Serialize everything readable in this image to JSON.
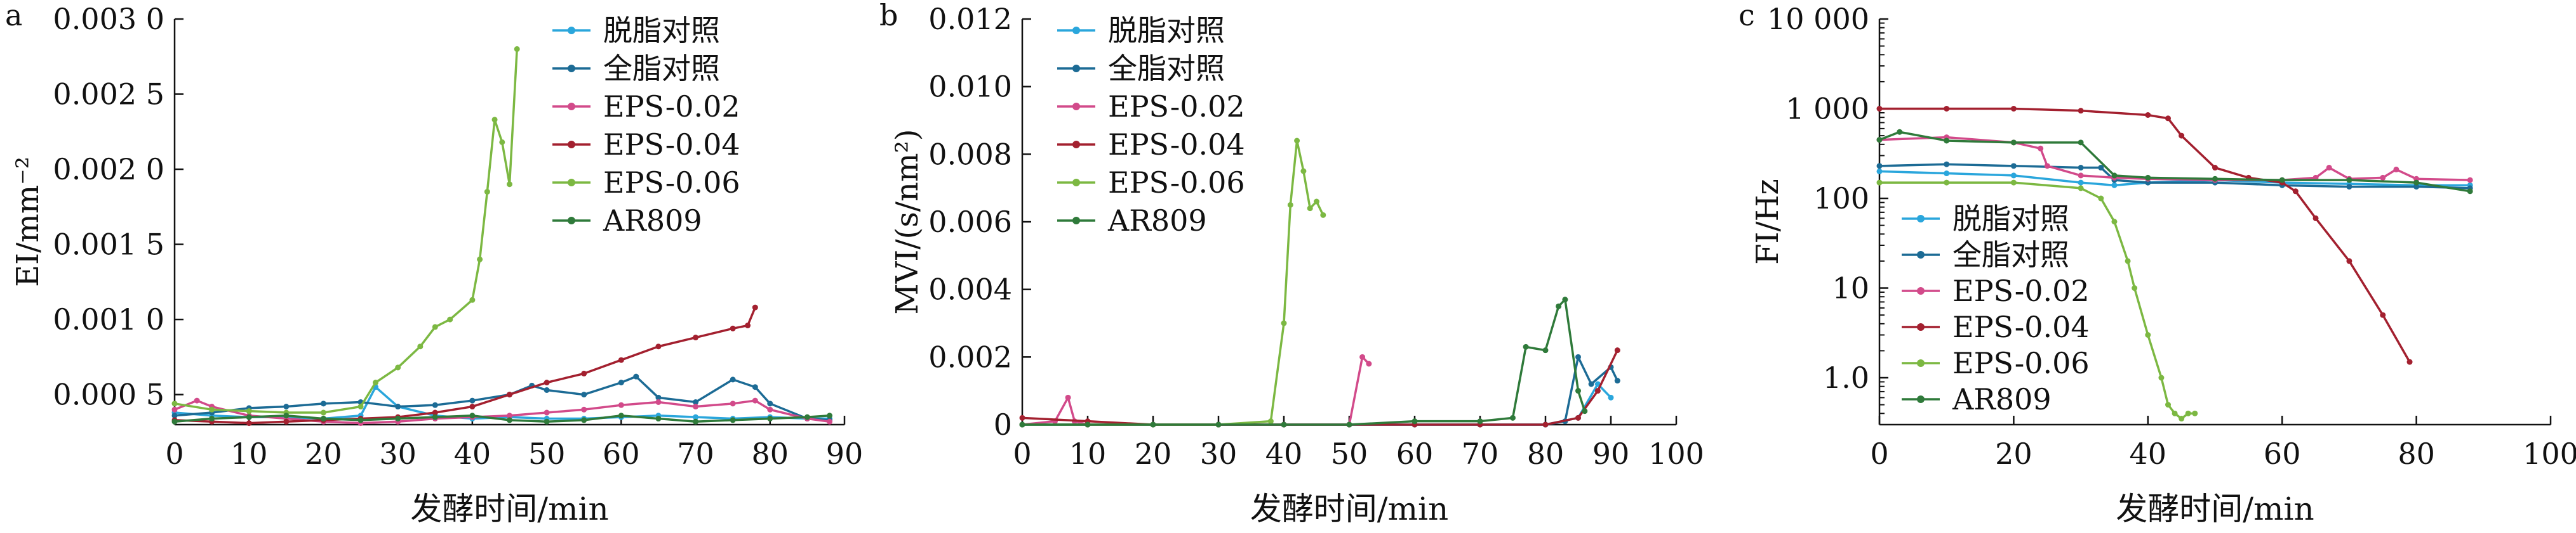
{
  "colors": {
    "skim": "#2aa6dc",
    "whole": "#1c6b95",
    "eps002": "#d24a8a",
    "eps004": "#a3202f",
    "eps006": "#7cb842",
    "ar809": "#2f7a3a"
  },
  "chart_data": [
    {
      "type": "line",
      "panel_label": "a",
      "xlabel": "发酵时间/min",
      "ylabel": "EI/mm⁻²",
      "xlim": [
        0,
        90
      ],
      "ylim": [
        0.0003,
        0.003
      ],
      "xticks": [
        0,
        10,
        20,
        30,
        40,
        50,
        60,
        70,
        80,
        90
      ],
      "xtick_labels": [
        "0",
        "10",
        "20",
        "30",
        "40",
        "50",
        "60",
        "70",
        "80",
        "90"
      ],
      "yticks": [
        0.0005,
        0.001,
        0.0015,
        0.002,
        0.0025,
        0.003
      ],
      "ytick_labels": [
        "0.000 5",
        "0.001 0",
        "0.001 5",
        "0.002 0",
        "0.002 5",
        "0.003 0"
      ],
      "legend_position": "top-center",
      "series": [
        {
          "name": "脱脂对照",
          "color_key": "skim",
          "x": [
            0,
            5,
            10,
            15,
            20,
            25,
            27,
            30,
            35,
            40,
            45,
            50,
            55,
            60,
            65,
            70,
            75,
            80,
            85,
            88
          ],
          "y": [
            0.00038,
            0.00036,
            0.00035,
            0.00035,
            0.00034,
            0.00036,
            0.00055,
            0.00042,
            0.00036,
            0.00034,
            0.00035,
            0.00034,
            0.00034,
            0.00035,
            0.00036,
            0.00035,
            0.00034,
            0.00035,
            0.00034,
            0.00034
          ]
        },
        {
          "name": "全脂对照",
          "color_key": "whole",
          "x": [
            0,
            5,
            10,
            15,
            20,
            25,
            30,
            35,
            40,
            45,
            48,
            50,
            55,
            60,
            62,
            65,
            70,
            75,
            78,
            80,
            85,
            88
          ],
          "y": [
            0.00036,
            0.00038,
            0.00041,
            0.00042,
            0.00044,
            0.00045,
            0.00042,
            0.00043,
            0.00046,
            0.0005,
            0.00056,
            0.00053,
            0.0005,
            0.00058,
            0.00062,
            0.00048,
            0.00045,
            0.0006,
            0.00055,
            0.00044,
            0.00034,
            0.00033
          ]
        },
        {
          "name": "EPS-0.02",
          "color_key": "eps002",
          "x": [
            0,
            3,
            5,
            10,
            15,
            20,
            25,
            30,
            35,
            40,
            45,
            50,
            55,
            60,
            65,
            70,
            75,
            78,
            80,
            85,
            88
          ],
          "y": [
            0.0004,
            0.00046,
            0.00042,
            0.00036,
            0.00034,
            0.00032,
            0.00031,
            0.00032,
            0.00034,
            0.00035,
            0.00036,
            0.00038,
            0.0004,
            0.00043,
            0.00045,
            0.00042,
            0.00044,
            0.00046,
            0.0004,
            0.00034,
            0.00032
          ]
        },
        {
          "name": "EPS-0.04",
          "color_key": "eps004",
          "x": [
            0,
            5,
            10,
            15,
            20,
            25,
            30,
            35,
            40,
            45,
            50,
            55,
            60,
            65,
            70,
            75,
            77,
            78
          ],
          "y": [
            0.00033,
            0.00032,
            0.00031,
            0.00032,
            0.00033,
            0.00034,
            0.00035,
            0.00038,
            0.00042,
            0.0005,
            0.00058,
            0.00064,
            0.00073,
            0.00082,
            0.00088,
            0.00094,
            0.00096,
            0.00108
          ]
        },
        {
          "name": "EPS-0.06",
          "color_key": "eps006",
          "x": [
            0,
            5,
            10,
            15,
            20,
            25,
            27,
            30,
            33,
            35,
            37,
            40,
            41,
            42,
            43,
            44,
            45,
            46
          ],
          "y": [
            0.00044,
            0.0004,
            0.00039,
            0.00038,
            0.00038,
            0.00042,
            0.00058,
            0.00068,
            0.00082,
            0.00095,
            0.001,
            0.00113,
            0.0014,
            0.00185,
            0.00233,
            0.00218,
            0.0019,
            0.0028
          ]
        },
        {
          "name": "AR809",
          "color_key": "ar809",
          "x": [
            0,
            5,
            10,
            15,
            20,
            25,
            30,
            35,
            40,
            45,
            50,
            55,
            60,
            65,
            70,
            75,
            80,
            85,
            88
          ],
          "y": [
            0.00032,
            0.00034,
            0.00035,
            0.00036,
            0.00034,
            0.00033,
            0.00034,
            0.00035,
            0.00036,
            0.00033,
            0.00032,
            0.00033,
            0.00036,
            0.00034,
            0.00032,
            0.00033,
            0.00034,
            0.00035,
            0.00036
          ]
        }
      ]
    },
    {
      "type": "line",
      "panel_label": "b",
      "xlabel": "发酵时间/min",
      "ylabel": "MVI/(s/nm²)",
      "xlim": [
        0,
        100
      ],
      "ylim": [
        0,
        0.012
      ],
      "xticks": [
        0,
        10,
        20,
        30,
        40,
        50,
        60,
        70,
        80,
        90,
        100
      ],
      "xtick_labels": [
        "0",
        "10",
        "20",
        "30",
        "40",
        "50",
        "60",
        "70",
        "80",
        "90",
        "100"
      ],
      "yticks": [
        0,
        0.002,
        0.004,
        0.006,
        0.008,
        0.01,
        0.012
      ],
      "ytick_labels": [
        "0",
        "0.002",
        "0.004",
        "0.006",
        "0.008",
        "0.010",
        "0.012"
      ],
      "legend_position": "top-center",
      "series": [
        {
          "name": "脱脂对照",
          "color_key": "skim",
          "x": [
            0,
            10,
            20,
            30,
            40,
            50,
            60,
            70,
            80,
            85,
            88,
            90
          ],
          "y": [
            0,
            0,
            0,
            0,
            0,
            0,
            0,
            0,
            0,
            0.0002,
            0.0012,
            0.0008
          ]
        },
        {
          "name": "全脂对照",
          "color_key": "whole",
          "x": [
            0,
            10,
            20,
            30,
            40,
            50,
            60,
            70,
            80,
            83,
            85,
            87,
            90,
            91
          ],
          "y": [
            0,
            0,
            0,
            0,
            0,
            0,
            0,
            0,
            0,
            0.0001,
            0.002,
            0.0012,
            0.0017,
            0.0013
          ]
        },
        {
          "name": "EPS-0.02",
          "color_key": "eps002",
          "x": [
            0,
            5,
            7,
            8,
            10,
            20,
            30,
            40,
            50,
            52,
            53
          ],
          "y": [
            0,
            0.0001,
            0.0008,
            0.0001,
            0,
            0,
            0,
            0,
            0,
            0.002,
            0.0018
          ]
        },
        {
          "name": "EPS-0.04",
          "color_key": "eps004",
          "x": [
            0,
            10,
            20,
            30,
            40,
            50,
            60,
            70,
            80,
            85,
            88,
            91
          ],
          "y": [
            0.0002,
            0.0001,
            0,
            0,
            0,
            0,
            0,
            0,
            0,
            0.0002,
            0.001,
            0.0022
          ]
        },
        {
          "name": "EPS-0.06",
          "color_key": "eps006",
          "x": [
            0,
            10,
            20,
            30,
            38,
            40,
            41,
            42,
            43,
            44,
            45,
            46
          ],
          "y": [
            0,
            0,
            0,
            0,
            0.0001,
            0.003,
            0.0065,
            0.0084,
            0.0075,
            0.0064,
            0.0066,
            0.0062
          ]
        },
        {
          "name": "AR809",
          "color_key": "ar809",
          "x": [
            0,
            10,
            20,
            30,
            40,
            50,
            60,
            70,
            75,
            77,
            80,
            82,
            83,
            85,
            86
          ],
          "y": [
            0,
            0,
            0,
            0,
            0,
            0,
            0.0001,
            0.0001,
            0.0002,
            0.0023,
            0.0022,
            0.0035,
            0.0037,
            0.001,
            0.0004
          ]
        }
      ]
    },
    {
      "type": "line",
      "panel_label": "c",
      "xlabel": "发酵时间/min",
      "ylabel": "FI/Hz",
      "yscale": "log",
      "xlim": [
        0,
        100
      ],
      "ylim": [
        0.3,
        10000
      ],
      "xticks": [
        0,
        20,
        40,
        60,
        80,
        100
      ],
      "xtick_labels": [
        "0",
        "20",
        "40",
        "60",
        "80",
        "100"
      ],
      "yticks": [
        1,
        10,
        100,
        1000,
        10000
      ],
      "ytick_labels": [
        "1.0",
        "10",
        "100",
        "1 000",
        "10 000"
      ],
      "legend_position": "center-left",
      "series": [
        {
          "name": "脱脂对照",
          "color_key": "skim",
          "x": [
            0,
            10,
            20,
            30,
            35,
            40,
            50,
            60,
            70,
            80,
            88
          ],
          "y": [
            200,
            190,
            180,
            150,
            140,
            150,
            160,
            150,
            145,
            140,
            140
          ]
        },
        {
          "name": "全脂对照",
          "color_key": "whole",
          "x": [
            0,
            10,
            20,
            30,
            33,
            35,
            40,
            50,
            60,
            70,
            80,
            88
          ],
          "y": [
            230,
            240,
            230,
            220,
            220,
            160,
            150,
            150,
            140,
            135,
            135,
            130
          ]
        },
        {
          "name": "EPS-0.02",
          "color_key": "eps002",
          "x": [
            0,
            10,
            20,
            24,
            25,
            30,
            35,
            40,
            50,
            60,
            65,
            67,
            70,
            75,
            77,
            80,
            88
          ],
          "y": [
            450,
            480,
            420,
            360,
            230,
            180,
            170,
            165,
            160,
            160,
            170,
            220,
            165,
            170,
            210,
            165,
            160
          ]
        },
        {
          "name": "EPS-0.04",
          "color_key": "eps004",
          "x": [
            0,
            10,
            20,
            30,
            40,
            43,
            45,
            50,
            55,
            60,
            62,
            65,
            70,
            75,
            79
          ],
          "y": [
            1000,
            1000,
            1000,
            950,
            850,
            780,
            500,
            220,
            170,
            150,
            120,
            60,
            20,
            5,
            1.5
          ]
        },
        {
          "name": "EPS-0.06",
          "color_key": "eps006",
          "x": [
            0,
            10,
            20,
            30,
            33,
            35,
            37,
            38,
            40,
            42,
            43,
            44,
            45,
            46,
            47
          ],
          "y": [
            150,
            150,
            150,
            130,
            100,
            55,
            20,
            10,
            3,
            1,
            0.5,
            0.4,
            0.35,
            0.4,
            0.4
          ]
        },
        {
          "name": "AR809",
          "color_key": "ar809",
          "x": [
            0,
            3,
            10,
            20,
            30,
            35,
            40,
            50,
            60,
            70,
            80,
            88
          ],
          "y": [
            450,
            550,
            440,
            420,
            420,
            180,
            170,
            165,
            160,
            160,
            150,
            120
          ]
        }
      ]
    }
  ]
}
